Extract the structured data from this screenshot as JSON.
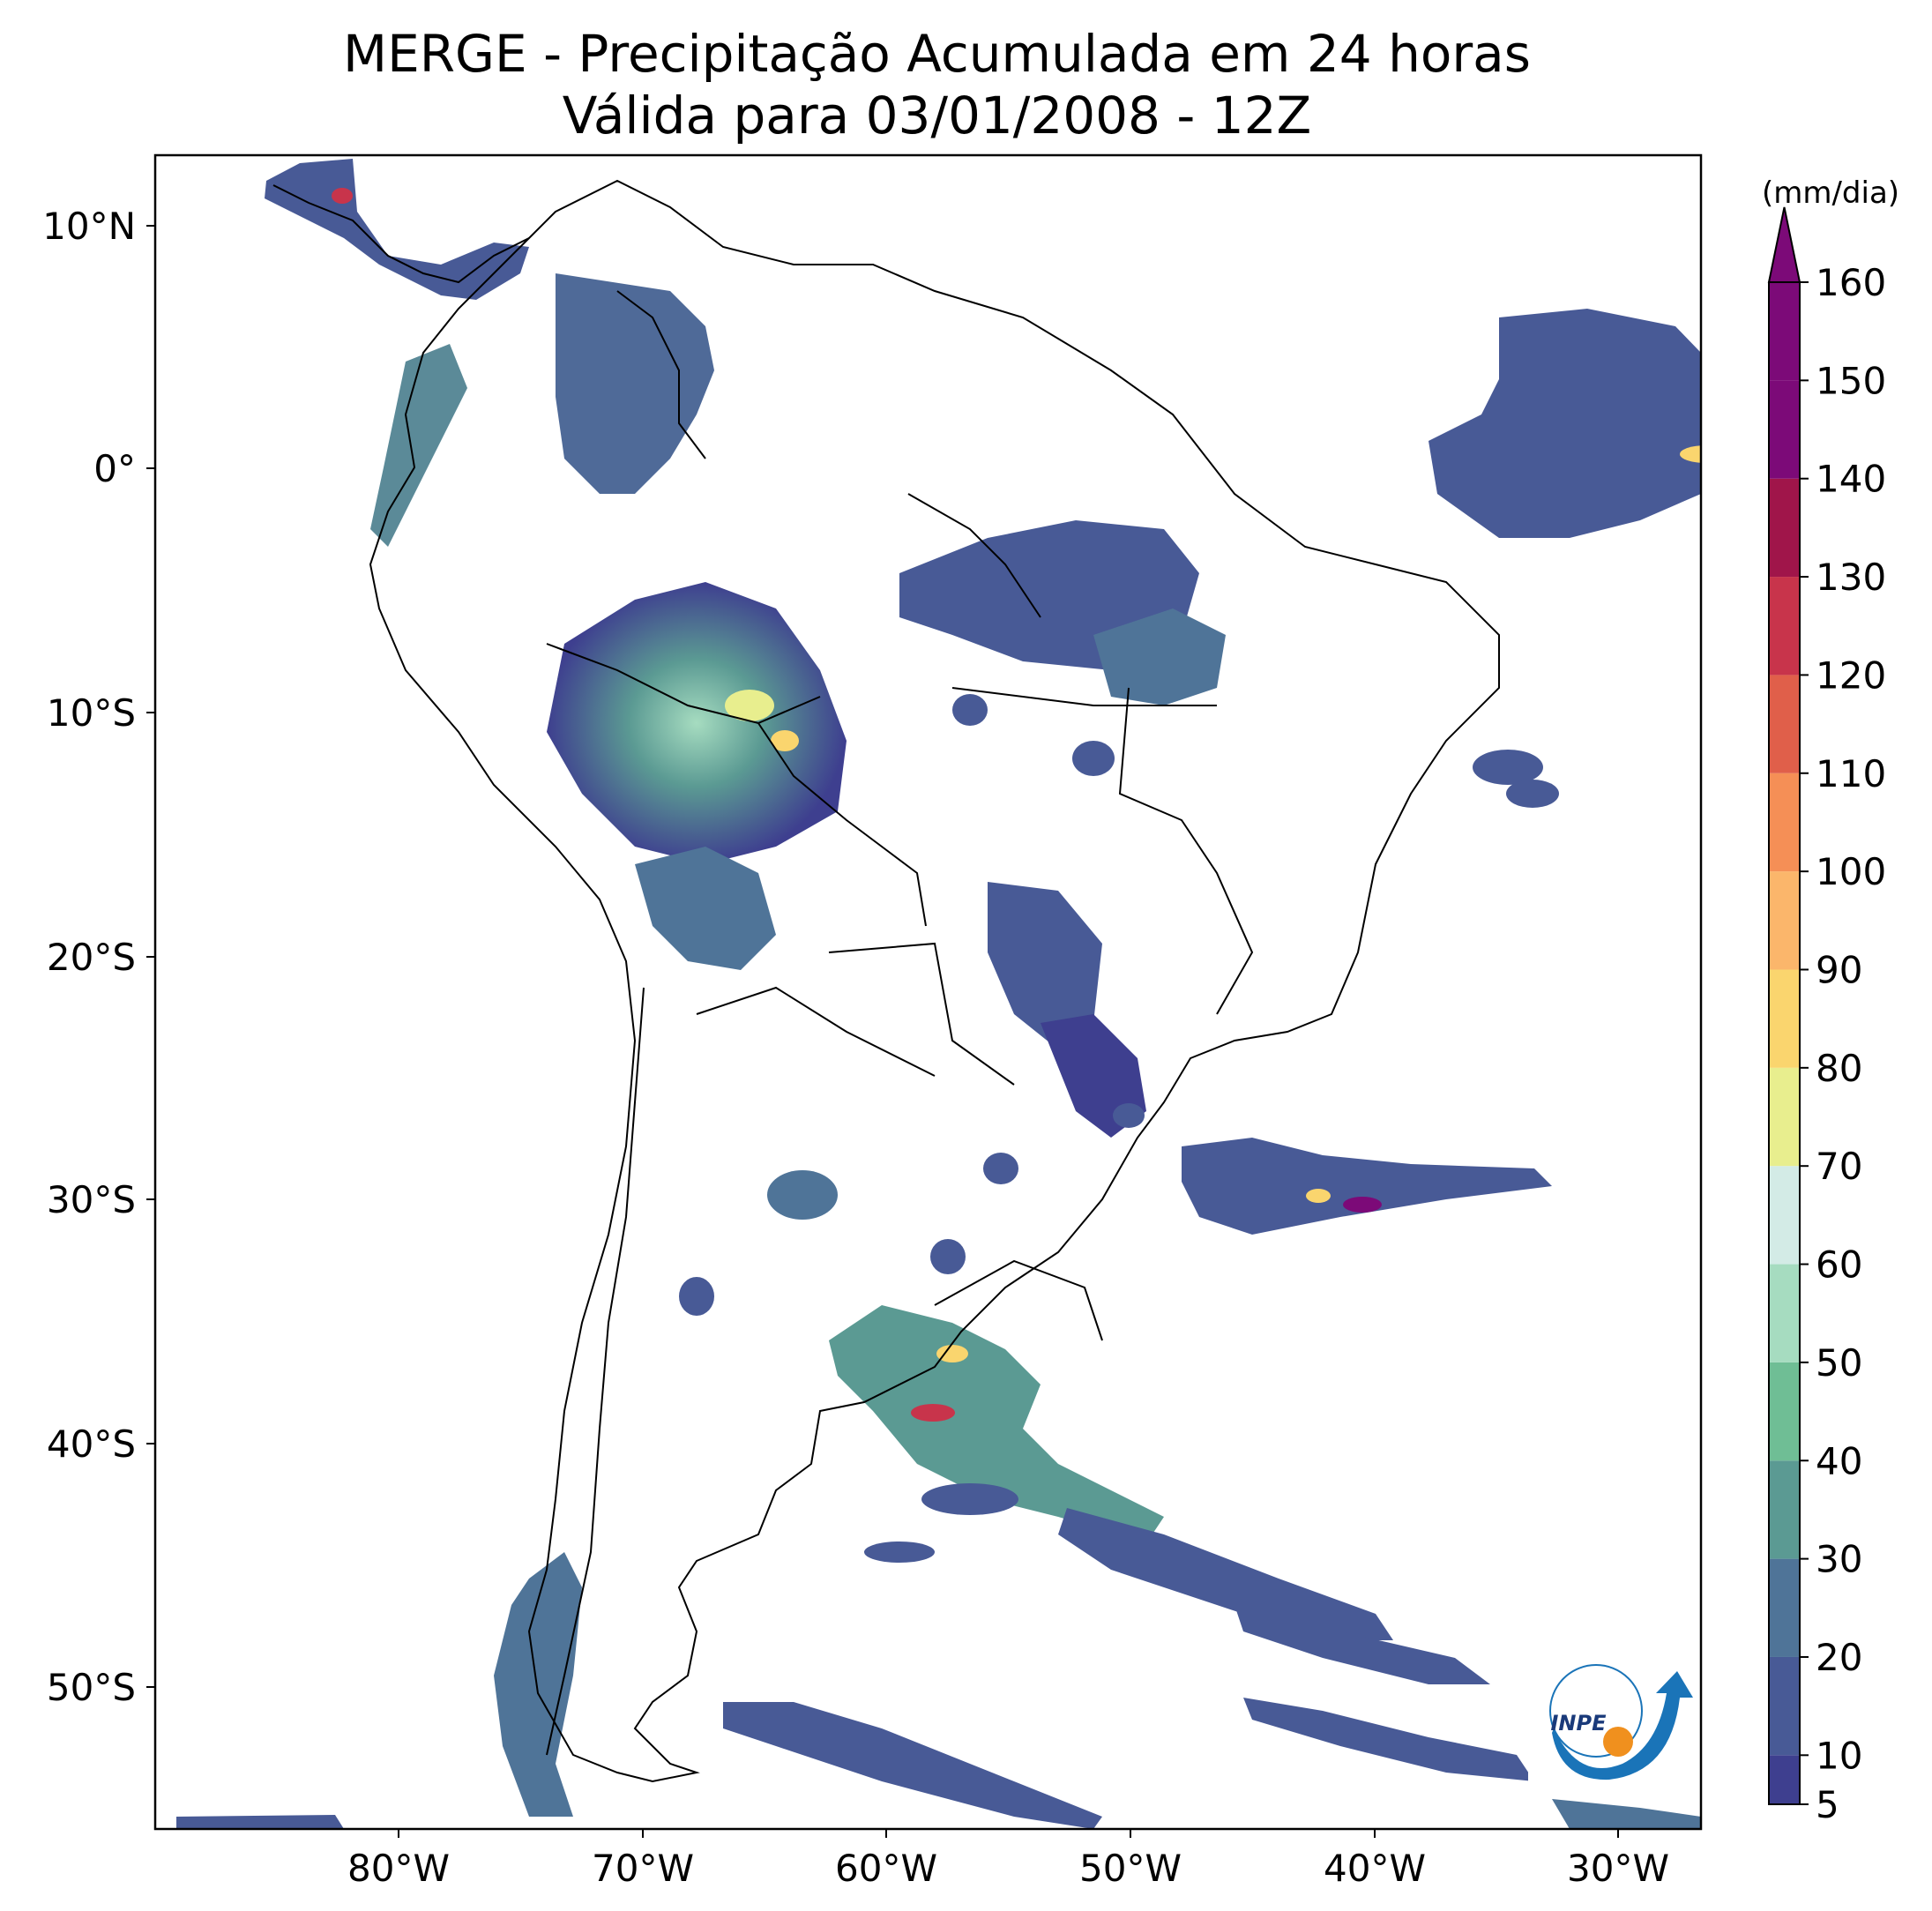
{
  "title": {
    "line1": "MERGE - Precipitação Acumulada em 24 horas",
    "line2": "Válida para 03/01/2008 - 12Z"
  },
  "map": {
    "lat_labels": [
      "10°N",
      "0°",
      "10°S",
      "20°S",
      "30°S",
      "40°S",
      "50°S"
    ],
    "lon_labels": [
      "80°W",
      "70°W",
      "60°W",
      "50°W",
      "40°W",
      "30°W"
    ]
  },
  "colorbar": {
    "unit": "(mm/dia)",
    "tick_labels": [
      "5",
      "10",
      "20",
      "30",
      "40",
      "50",
      "60",
      "70",
      "80",
      "90",
      "100",
      "110",
      "120",
      "130",
      "140",
      "150",
      "160"
    ],
    "colors": [
      "#3e3f8f",
      "#485a96",
      "#4f7498",
      "#5b9a93",
      "#6fbe95",
      "#a6dcc0",
      "#d3ebe6",
      "#e8ee8e",
      "#fad56e",
      "#fbb66b",
      "#f58f56",
      "#e05f4a",
      "#c8344b",
      "#a0154a",
      "#7c0a78"
    ]
  },
  "logo": {
    "text": "INPE"
  }
}
